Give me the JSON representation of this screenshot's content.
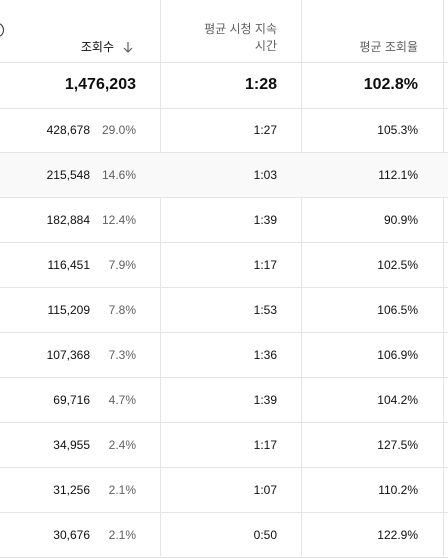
{
  "header": {
    "views_label": "조회수",
    "avg_view_duration_line1": "평균 시청 지속",
    "avg_view_duration_line2": "시간",
    "avg_percentage_label": "평균 조회율"
  },
  "total": {
    "views": "1,476,203",
    "avg_view_duration": "1:28",
    "avg_percentage": "102.8%"
  },
  "rows": [
    {
      "views": "428,678",
      "share": "29.0%",
      "duration": "1:27",
      "avg_pct": "105.3%"
    },
    {
      "views": "215,548",
      "share": "14.6%",
      "duration": "1:03",
      "avg_pct": "112.1%"
    },
    {
      "views": "182,884",
      "share": "12.4%",
      "duration": "1:39",
      "avg_pct": "90.9%"
    },
    {
      "views": "116,451",
      "share": "7.9%",
      "duration": "1:17",
      "avg_pct": "102.5%"
    },
    {
      "views": "115,209",
      "share": "7.8%",
      "duration": "1:53",
      "avg_pct": "106.5%"
    },
    {
      "views": "107,368",
      "share": "7.3%",
      "duration": "1:36",
      "avg_pct": "106.9%"
    },
    {
      "views": "69,716",
      "share": "4.7%",
      "duration": "1:39",
      "avg_pct": "104.2%"
    },
    {
      "views": "34,955",
      "share": "2.4%",
      "duration": "1:17",
      "avg_pct": "127.5%"
    },
    {
      "views": "31,256",
      "share": "2.1%",
      "duration": "1:07",
      "avg_pct": "110.2%"
    },
    {
      "views": "30,676",
      "share": "2.1%",
      "duration": "0:50",
      "avg_pct": "122.9%"
    }
  ],
  "icons": {
    "sort": "arrow-down-icon",
    "info": "info-icon"
  }
}
